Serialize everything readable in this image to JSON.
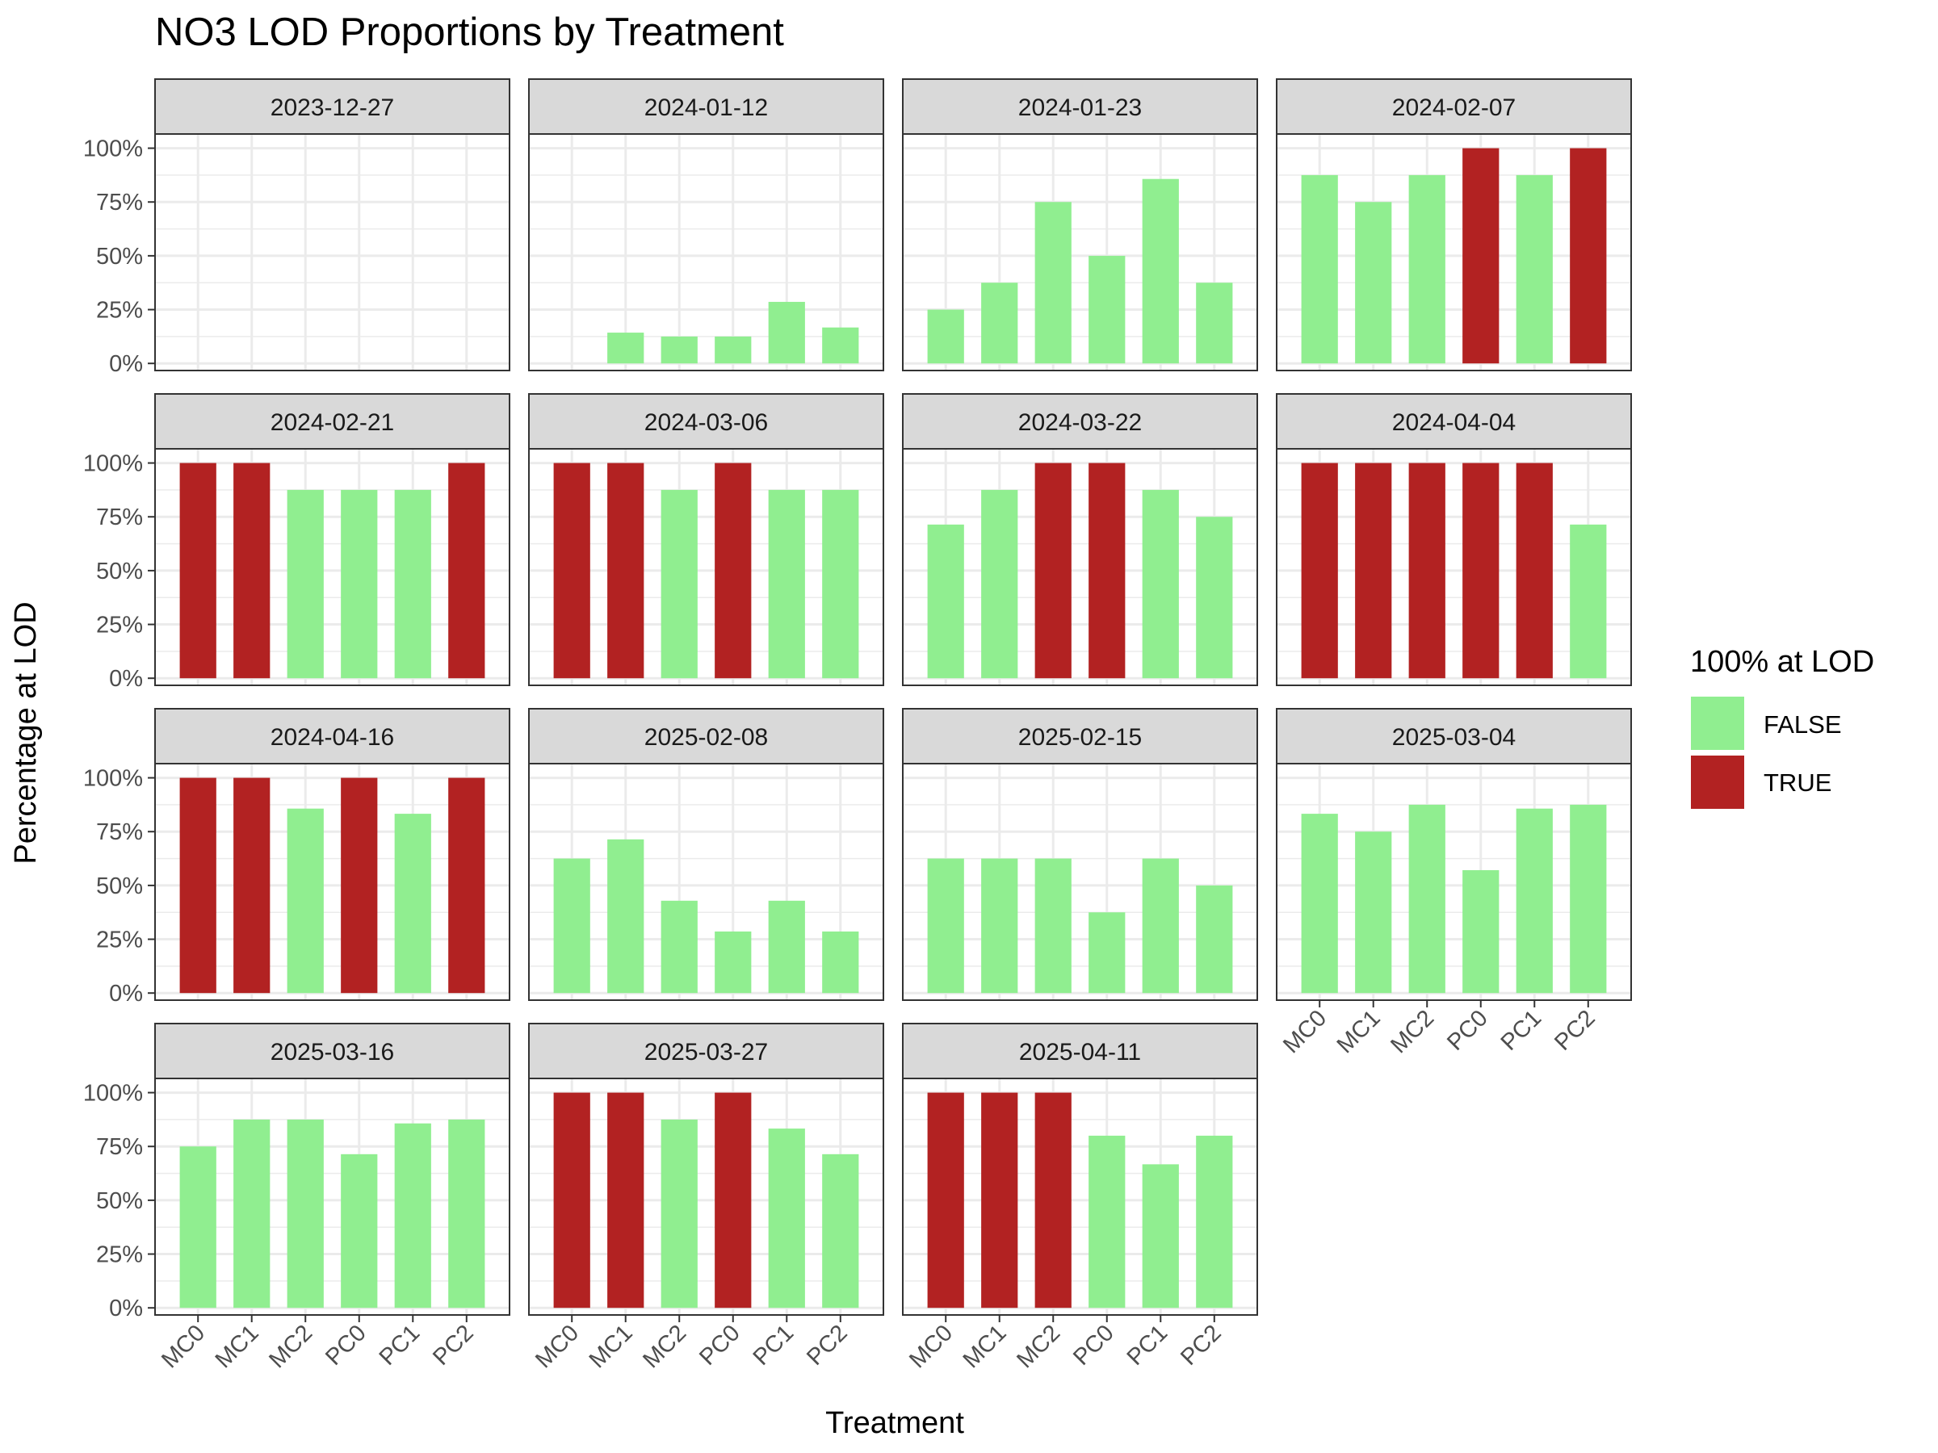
{
  "colors": {
    "false": "#90EE90",
    "true": "#B22222",
    "strip_bg": "#D9D9D9",
    "grid": "#EBEBEB",
    "border": "#333333"
  },
  "chart_data": {
    "type": "bar",
    "title": "NO3 LOD Proportions by Treatment",
    "xlabel": "Treatment",
    "ylabel": "Percentage at LOD",
    "ylim": [
      0,
      100
    ],
    "yticks": [
      0,
      25,
      50,
      75,
      100
    ],
    "ytick_labels": [
      "0%",
      "25%",
      "50%",
      "75%",
      "100%"
    ],
    "categories": [
      "MC0",
      "MC1",
      "MC2",
      "PC0",
      "PC1",
      "PC2"
    ],
    "legend": {
      "title": "100% at LOD",
      "placement": "right",
      "entries": [
        "FALSE",
        "TRUE"
      ]
    },
    "facets": [
      {
        "label": "2023-12-27",
        "values": [
          0,
          0,
          0,
          0,
          0,
          0
        ]
      },
      {
        "label": "2024-01-12",
        "values": [
          0,
          14.3,
          12.5,
          12.5,
          28.6,
          16.7
        ]
      },
      {
        "label": "2024-01-23",
        "values": [
          25,
          37.5,
          75,
          50,
          85.7,
          37.5
        ]
      },
      {
        "label": "2024-02-07",
        "values": [
          87.5,
          75,
          87.5,
          100,
          87.5,
          100
        ]
      },
      {
        "label": "2024-02-21",
        "values": [
          100,
          100,
          87.5,
          87.5,
          87.5,
          100
        ]
      },
      {
        "label": "2024-03-06",
        "values": [
          100,
          100,
          87.5,
          100,
          87.5,
          87.5
        ]
      },
      {
        "label": "2024-03-22",
        "values": [
          71.4,
          87.5,
          100,
          100,
          87.5,
          75
        ]
      },
      {
        "label": "2024-04-04",
        "values": [
          100,
          100,
          100,
          100,
          100,
          71.4
        ]
      },
      {
        "label": "2024-04-16",
        "values": [
          100,
          100,
          85.7,
          100,
          83.3,
          100
        ]
      },
      {
        "label": "2025-02-08",
        "values": [
          62.5,
          71.4,
          42.9,
          28.6,
          42.9,
          28.6
        ]
      },
      {
        "label": "2025-02-15",
        "values": [
          62.5,
          62.5,
          62.5,
          37.5,
          62.5,
          50
        ]
      },
      {
        "label": "2025-03-04",
        "values": [
          83.3,
          75,
          87.5,
          57.1,
          85.7,
          87.5
        ]
      },
      {
        "label": "2025-03-16",
        "values": [
          75,
          87.5,
          87.5,
          71.4,
          85.7,
          87.5
        ]
      },
      {
        "label": "2025-03-27",
        "values": [
          100,
          100,
          87.5,
          100,
          83.3,
          71.4
        ]
      },
      {
        "label": "2025-04-11",
        "values": [
          100,
          100,
          100,
          80,
          66.7,
          80
        ]
      }
    ]
  }
}
